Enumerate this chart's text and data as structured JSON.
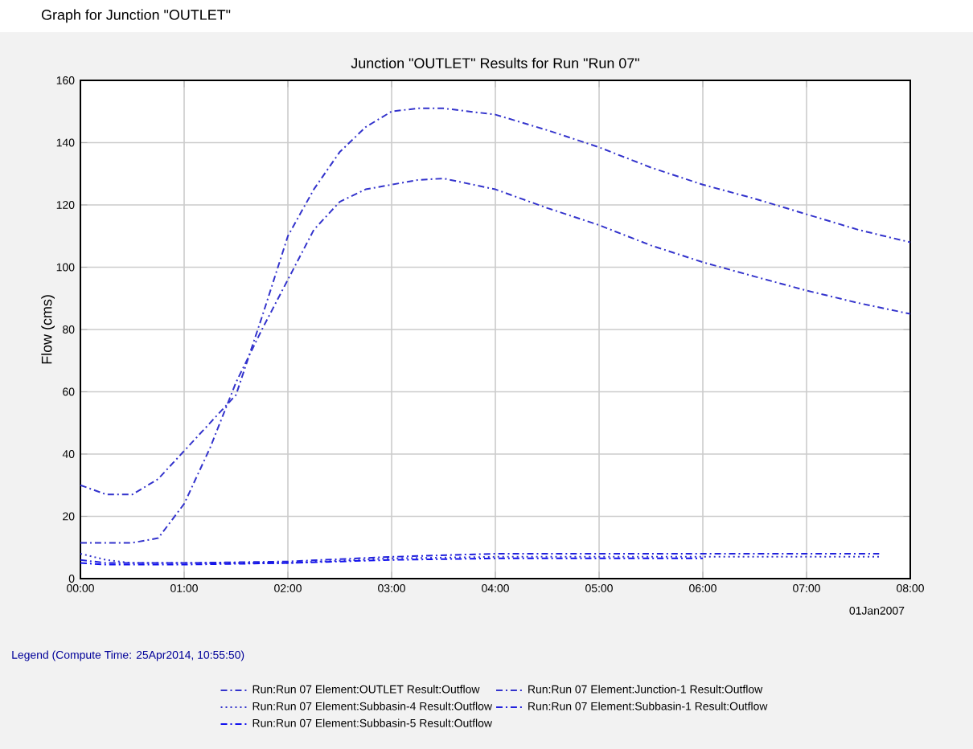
{
  "chart_data": {
    "type": "line",
    "title": "Junction \"OUTLET\" Results for Run \"Run 07\"",
    "xlabel": "01Jan2007",
    "ylabel": "Flow (cms)",
    "legend_title": "Legend (Compute Time: 25Apr2014, 10:55:50)",
    "annotations": [
      "Graph for Junction \"OUTLET\""
    ],
    "xlim": [
      0,
      8
    ],
    "ylim": [
      0,
      160
    ],
    "xticks": [
      {
        "value": 0,
        "label": "00:00"
      },
      {
        "value": 1,
        "label": "01:00"
      },
      {
        "value": 2,
        "label": "02:00"
      },
      {
        "value": 3,
        "label": "03:00"
      },
      {
        "value": 4,
        "label": "04:00"
      },
      {
        "value": 5,
        "label": "05:00"
      },
      {
        "value": 6,
        "label": "06:00"
      },
      {
        "value": 7,
        "label": "07:00"
      },
      {
        "value": 8,
        "label": "08:00"
      }
    ],
    "yticks": [
      0,
      20,
      40,
      60,
      80,
      100,
      120,
      140,
      160
    ],
    "grid": true,
    "legend": "bottom",
    "marker": "none",
    "series": [
      {
        "name": "Run:Run 07 Element:OUTLET Result:Outflow",
        "color": "#3333cc",
        "line_style": "dashed",
        "x": [
          0,
          0.25,
          0.5,
          0.75,
          1,
          1.25,
          1.5,
          1.75,
          2,
          2.25,
          2.5,
          2.75,
          3,
          3.25,
          3.5,
          4,
          4.5,
          5,
          5.5,
          6,
          6.5,
          7,
          7.5,
          8
        ],
        "values": [
          30,
          27,
          27,
          32,
          41,
          50,
          59,
          84,
          110,
          125,
          137,
          145,
          150,
          151,
          151,
          149,
          144,
          138.5,
          132,
          126.5,
          122,
          117,
          112,
          108
        ]
      },
      {
        "name": "Run:Run 07 Element:Junction-1 Result:Outflow",
        "color": "#3333cc",
        "line_style": "dashed",
        "x": [
          0,
          0.25,
          0.5,
          0.75,
          1,
          1.25,
          1.5,
          1.75,
          2,
          2.25,
          2.5,
          2.75,
          3,
          3.25,
          3.5,
          4,
          4.5,
          5,
          5.5,
          6,
          6.5,
          7,
          7.5,
          8
        ],
        "values": [
          11.5,
          11.5,
          11.5,
          13,
          24,
          42,
          63,
          80,
          96,
          112,
          121,
          125,
          126.5,
          128,
          128.5,
          125,
          119,
          113.5,
          107,
          101.6,
          97,
          92.5,
          88.5,
          85
        ]
      },
      {
        "name": "Run:Run 07 Element:Subbasin-4 Result:Outflow",
        "color": "#3333cc",
        "line_style": "dotted",
        "x": [
          0,
          0.25,
          0.5,
          1,
          2,
          3,
          4,
          5,
          6,
          7,
          7.7
        ],
        "values": [
          8,
          6,
          5,
          5,
          5,
          6.5,
          7,
          7,
          7,
          7,
          7
        ]
      },
      {
        "name": "Run:Run 07 Element:Subbasin-1 Result:Outflow",
        "color": "#2222dd",
        "line_style": "dashed",
        "x": [
          0,
          0.25,
          0.5,
          1,
          2,
          3,
          4,
          5,
          6,
          7,
          7.7
        ],
        "values": [
          6,
          5,
          5,
          5,
          5.5,
          7,
          8,
          8,
          8,
          8,
          8
        ]
      },
      {
        "name": "Run:Run 07 Element:Subbasin-5 Result:Outflow",
        "color": "#1111ee",
        "line_style": "dashed",
        "x": [
          0,
          0.25,
          0.5,
          1,
          2,
          3,
          4,
          5,
          6
        ],
        "values": [
          5,
          4.5,
          4.5,
          4.5,
          5,
          6,
          6.5,
          6.5,
          6.5
        ]
      }
    ]
  }
}
